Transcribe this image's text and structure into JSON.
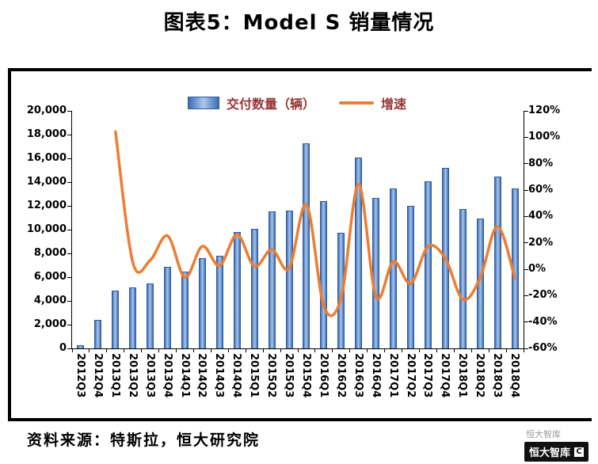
{
  "title": "图表5：Model S 销量情况",
  "legend": {
    "bar_label": "交付数量（辆）",
    "line_label": "增速"
  },
  "colors": {
    "bar_gradient_edge": "#3c6db5",
    "bar_gradient_center": "#a9c7ea",
    "bar_border": "#2e5b9f",
    "line": "#ED7D31",
    "legend_text": "#963634"
  },
  "chart_data": {
    "type": "combo",
    "title": "图表5：Model S 销量情况",
    "categories": [
      "2012Q3",
      "2012Q4",
      "2013Q1",
      "2013Q2",
      "2013Q3",
      "2013Q4",
      "2014Q1",
      "2014Q2",
      "2014Q3",
      "2014Q4",
      "2015Q1",
      "2015Q2",
      "2015Q3",
      "2015Q4",
      "2016Q1",
      "2016Q2",
      "2016Q3",
      "2016Q4",
      "2017Q1",
      "2017Q2",
      "2017Q3",
      "2017Q4",
      "2018Q1",
      "2018Q2",
      "2018Q3",
      "2018Q4"
    ],
    "series": [
      {
        "name": "交付数量（辆）",
        "type": "bar",
        "axis": "left",
        "values": [
          250,
          2400,
          4900,
          5150,
          5500,
          6892,
          6457,
          7579,
          7785,
          9834,
          10045,
          11532,
          11597,
          17272,
          12420,
          9764,
          16047,
          12700,
          13450,
          12000,
          14065,
          15200,
          11730,
          10930,
          14470,
          13500
        ]
      },
      {
        "name": "增速",
        "type": "line",
        "axis": "right",
        "values": [
          null,
          null,
          104.2,
          5.1,
          6.8,
          25.3,
          -6.3,
          17.4,
          2.7,
          26.3,
          2.1,
          14.8,
          0.6,
          48.9,
          -28.1,
          -21.4,
          64.3,
          -20.9,
          5.9,
          -10.8,
          17.2,
          8.1,
          -22.8,
          -6.8,
          32.4,
          -6.7
        ]
      }
    ],
    "left_axis": {
      "min": 0,
      "max": 20000,
      "step": 2000,
      "tick_labels": [
        "0",
        "2,000",
        "4,000",
        "6,000",
        "8,000",
        "10,000",
        "12,000",
        "14,000",
        "16,000",
        "18,000",
        "20,000"
      ]
    },
    "right_axis": {
      "min": -60,
      "max": 120,
      "step": 20,
      "tick_labels": [
        "-60%",
        "-40%",
        "-20%",
        "0%",
        "20%",
        "40%",
        "60%",
        "80%",
        "100%",
        "120%"
      ]
    },
    "grid": false,
    "legend_position": "top"
  },
  "footer": {
    "source": "资料来源：特斯拉，恒大研究院",
    "logo_top": "恒大智库",
    "logo_bottom": "恒大智库",
    "logo_glyph": "C"
  }
}
